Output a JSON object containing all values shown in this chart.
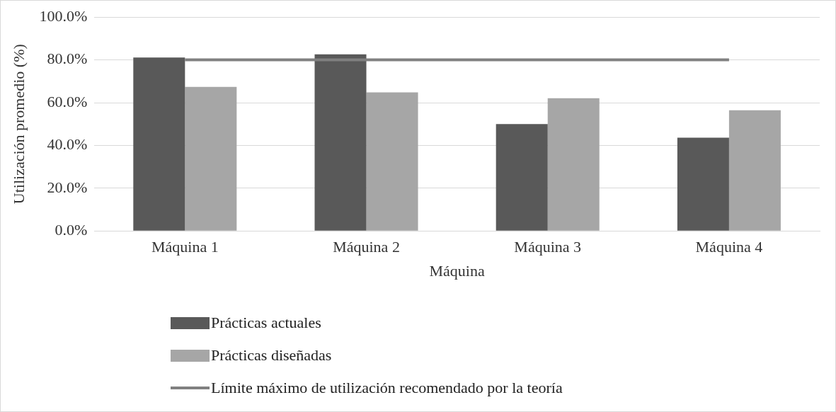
{
  "chart_data": {
    "type": "bar",
    "xlabel": "Máquina",
    "ylabel": "Utilización promedio (%)",
    "categories": [
      "Máquina 1",
      "Máquina 2",
      "Máquina 3",
      "Máquina 4"
    ],
    "series": [
      {
        "name": "Prácticas actuales",
        "color": "#595959",
        "values": [
          81.1,
          82.6,
          50.0,
          43.6
        ]
      },
      {
        "name": "Prácticas diseñadas",
        "color": "#a6a6a6",
        "values": [
          67.4,
          64.8,
          62.1,
          56.4
        ]
      },
      {
        "name": "Límite máximo de utilización recomendado por la teoría",
        "type": "line",
        "color": "#808080",
        "values": [
          80,
          80,
          80,
          80
        ],
        "marker": "none"
      }
    ],
    "ylim": [
      0,
      100
    ],
    "yticks": [
      {
        "value": 0,
        "label": "0.0%"
      },
      {
        "value": 20,
        "label": "20.0%"
      },
      {
        "value": 40,
        "label": "40.0%"
      },
      {
        "value": 60,
        "label": "60.0%"
      },
      {
        "value": 80,
        "label": "80.0%"
      },
      {
        "value": 100,
        "label": "100.0%"
      }
    ],
    "grid": "y",
    "legend": "bottom"
  }
}
